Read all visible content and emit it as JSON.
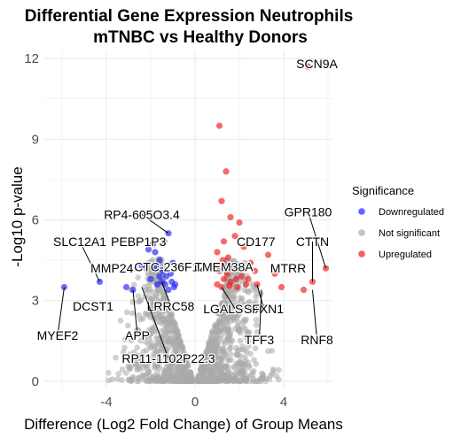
{
  "chart_data": {
    "type": "scatter",
    "title": "Differential Gene Expression Neutrophils",
    "subtitle": "mTNBC vs Healthy Donors",
    "xlabel": "Difference (Log2 Fold Change) of Group Means",
    "ylabel": "-Log10 p-value",
    "xlim": [
      -6.8,
      6.2
    ],
    "ylim": [
      -0.3,
      12.3
    ],
    "x_ticks": [
      -4,
      0,
      4
    ],
    "x_tick_labels": [
      "-4",
      "0",
      "4"
    ],
    "y_ticks": [
      0,
      3,
      6,
      9,
      12
    ],
    "y_tick_labels": [
      "0",
      "3",
      "6",
      "9",
      "12"
    ],
    "grid": true,
    "legend": {
      "title": "Significance",
      "placement": "right",
      "entries": [
        {
          "label": "Downregulated",
          "color": "#2222ff"
        },
        {
          "label": "Not significant",
          "color": "#aaaaaa"
        },
        {
          "label": "Upregulated",
          "color": "#ee1c1c"
        }
      ]
    },
    "series": [
      {
        "name": "Downregulated",
        "color": "#2222ff",
        "points": [
          [
            -5.9,
            3.5
          ],
          [
            -4.3,
            3.7
          ],
          [
            -3.1,
            3.5
          ],
          [
            -2.8,
            3.4
          ],
          [
            -2.4,
            4.3
          ],
          [
            -2.0,
            3.8
          ],
          [
            -1.9,
            5.1
          ],
          [
            -1.8,
            4.8
          ],
          [
            -1.7,
            3.6
          ],
          [
            -1.6,
            4.5
          ],
          [
            -1.5,
            3.7
          ],
          [
            -1.4,
            5.2
          ],
          [
            -1.3,
            3.9
          ],
          [
            -1.2,
            5.5
          ],
          [
            -1.1,
            4.0
          ],
          [
            -1.0,
            4.4
          ],
          [
            -0.9,
            3.6
          ],
          [
            -1.2,
            3.4
          ],
          [
            -0.95,
            3.5
          ],
          [
            -1.6,
            3.9
          ],
          [
            -2.1,
            4.9
          ],
          [
            -1.45,
            4.1
          ],
          [
            -1.75,
            4.2
          ],
          [
            -1.05,
            3.7
          ],
          [
            -1.35,
            3.6
          ]
        ]
      },
      {
        "name": "Upregulated",
        "color": "#ee1c1c",
        "points": [
          [
            5.1,
            11.7
          ],
          [
            1.1,
            9.5
          ],
          [
            1.4,
            7.8
          ],
          [
            1.2,
            6.7
          ],
          [
            1.6,
            6.1
          ],
          [
            2.0,
            5.9
          ],
          [
            1.8,
            5.4
          ],
          [
            1.3,
            5.2
          ],
          [
            1.0,
            4.8
          ],
          [
            2.2,
            5.0
          ],
          [
            1.5,
            4.6
          ],
          [
            2.5,
            4.4
          ],
          [
            3.3,
            4.7
          ],
          [
            5.9,
            4.2
          ],
          [
            5.3,
            3.7
          ],
          [
            4.9,
            3.4
          ],
          [
            3.9,
            3.5
          ],
          [
            3.6,
            4.0
          ],
          [
            2.8,
            3.6
          ],
          [
            1.1,
            4.1
          ],
          [
            1.3,
            3.8
          ],
          [
            1.7,
            4.2
          ],
          [
            2.1,
            3.9
          ],
          [
            1.0,
            3.6
          ],
          [
            1.9,
            3.5
          ],
          [
            2.4,
            3.8
          ],
          [
            1.2,
            3.5
          ],
          [
            1.6,
            3.7
          ],
          [
            2.7,
            4.1
          ],
          [
            1.45,
            4.0
          ],
          [
            1.85,
            3.8
          ],
          [
            1.05,
            4.3
          ],
          [
            2.3,
            3.6
          ],
          [
            1.55,
            3.55
          ],
          [
            1.25,
            4.5
          ]
        ]
      }
    ],
    "annotations": [
      {
        "text": "SCN9A",
        "x": 5.1,
        "y": 11.7,
        "lx": 5.5,
        "ly": 11.8,
        "line": false
      },
      {
        "text": "RP4-605O3.4",
        "x": -1.2,
        "y": 5.5,
        "lx": -2.4,
        "ly": 6.2,
        "line": true
      },
      {
        "text": "GPR180",
        "x": 5.9,
        "y": 4.2,
        "lx": 5.1,
        "ly": 6.3,
        "line": true
      },
      {
        "text": "SLC12A1",
        "x": -4.3,
        "y": 3.7,
        "lx": -5.2,
        "ly": 5.2,
        "line": true
      },
      {
        "text": "PEBP1P3",
        "x": -1.9,
        "y": 5.1,
        "lx": -2.55,
        "ly": 5.2,
        "line": false
      },
      {
        "text": "CD177",
        "x": 3.3,
        "y": 4.7,
        "lx": 2.75,
        "ly": 5.2,
        "line": false
      },
      {
        "text": "CTTN",
        "x": 5.3,
        "y": 3.7,
        "lx": 5.3,
        "ly": 5.2,
        "line": true
      },
      {
        "text": "MMP24",
        "x": -3.1,
        "y": 3.5,
        "lx": -3.75,
        "ly": 4.2,
        "line": false
      },
      {
        "text": "CTC-236F12.4",
        "x": -1.6,
        "y": 4.5,
        "lx": -0.9,
        "ly": 4.25,
        "line": false
      },
      {
        "text": "TMEM38A",
        "x": 1.5,
        "y": 4.6,
        "lx": 1.3,
        "ly": 4.25,
        "line": false
      },
      {
        "text": "MTRR",
        "x": 3.6,
        "y": 4.0,
        "lx": 4.2,
        "ly": 4.2,
        "line": false
      },
      {
        "text": "DCST1",
        "x": -4.3,
        "y": 3.7,
        "lx": -4.6,
        "ly": 2.8,
        "line": false
      },
      {
        "text": "LRRC58",
        "x": -1.5,
        "y": 3.7,
        "lx": -1.1,
        "ly": 2.8,
        "line": true
      },
      {
        "text": "LGALS3BP",
        "x": 1.2,
        "y": 3.5,
        "lx": 1.8,
        "ly": 2.7,
        "line": true
      },
      {
        "text": "SFXN1",
        "x": 2.8,
        "y": 3.6,
        "lx": 3.1,
        "ly": 2.7,
        "line": true
      },
      {
        "text": "MYEF2",
        "x": -5.9,
        "y": 3.5,
        "lx": -6.2,
        "ly": 1.7,
        "line": true
      },
      {
        "text": "APP",
        "x": -2.8,
        "y": 3.4,
        "lx": -2.6,
        "ly": 1.7,
        "line": true
      },
      {
        "text": "TFF3",
        "x": 3.0,
        "y": 3.4,
        "lx": 2.9,
        "ly": 1.55,
        "line": true
      },
      {
        "text": "RNF8",
        "x": 5.3,
        "y": 3.4,
        "lx": 5.5,
        "ly": 1.55,
        "line": true
      },
      {
        "text": "RP11-1102P22.3",
        "x": -2.4,
        "y": 3.5,
        "lx": -1.2,
        "ly": 0.85,
        "line": true
      }
    ]
  }
}
